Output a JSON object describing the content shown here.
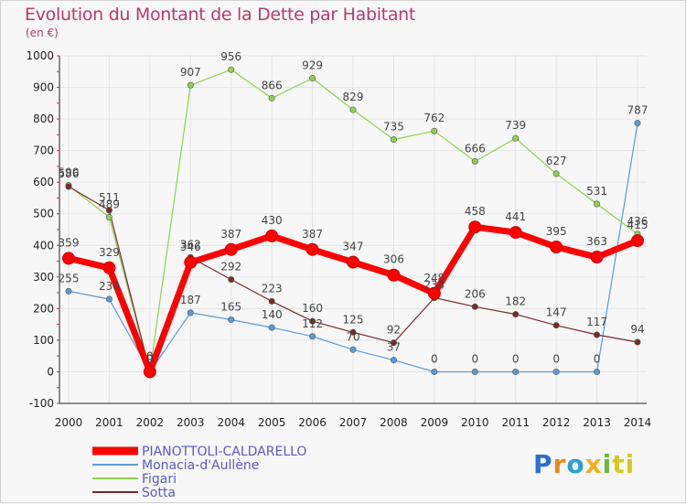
{
  "chart_data": {
    "type": "line",
    "title": "Evolution du Montant de la Dette par Habitant",
    "subtitle": "(en €)",
    "x": [
      "2000",
      "2001",
      "2002",
      "2003",
      "2004",
      "2005",
      "2006",
      "2007",
      "2008",
      "2009",
      "2010",
      "2011",
      "2012",
      "2013",
      "2014"
    ],
    "ylim": [
      -100,
      1000
    ],
    "yticks": [
      -100,
      0,
      100,
      200,
      300,
      400,
      500,
      600,
      700,
      800,
      900,
      1000
    ],
    "grid": true,
    "legend_position": "bottom-left",
    "series": [
      {
        "name": "PIANOTTOLI-CALDARELLO",
        "color": "#ff0000",
        "values": [
          359,
          329,
          0,
          346,
          387,
          430,
          387,
          347,
          306,
          248,
          458,
          441,
          395,
          363,
          415
        ]
      },
      {
        "name": "Monacia-d'Aullène",
        "color": "#5b9bd5",
        "values": [
          255,
          230,
          0,
          187,
          165,
          140,
          112,
          70,
          37,
          0,
          0,
          0,
          0,
          0,
          787
        ]
      },
      {
        "name": "Figari",
        "color": "#8fd14f",
        "values": [
          590,
          489,
          0,
          907,
          956,
          866,
          929,
          829,
          735,
          762,
          666,
          739,
          627,
          531,
          436
        ]
      },
      {
        "name": "Sotta",
        "color": "#7a2a2a",
        "values": [
          586,
          511,
          0,
          362,
          292,
          223,
          160,
          125,
          92,
          234,
          206,
          182,
          147,
          117,
          94
        ]
      }
    ]
  },
  "logo": {
    "letters": [
      "P",
      "r",
      "o",
      "x",
      "i",
      "t",
      "i"
    ]
  }
}
